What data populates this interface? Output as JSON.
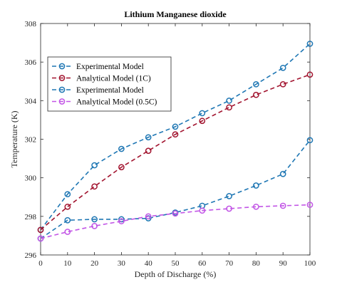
{
  "chart_data": {
    "type": "line",
    "title": "Lithium Manganese dioxide",
    "xlabel": "Depth of Discharge (%)",
    "ylabel": "Temperature (K)",
    "xlim": [
      0,
      100
    ],
    "ylim": [
      296,
      308
    ],
    "xticks": [
      0,
      10,
      20,
      30,
      40,
      50,
      60,
      70,
      80,
      90,
      100
    ],
    "yticks": [
      296,
      298,
      300,
      302,
      304,
      306,
      308
    ],
    "grid": false,
    "legend_position": "upper-left",
    "series": [
      {
        "name": "Experimental Model",
        "color": "#1f77b4",
        "marker": "circle",
        "line_style": "dashed",
        "x": [
          0,
          10,
          20,
          30,
          40,
          50,
          60,
          70,
          80,
          90,
          100
        ],
        "y": [
          297.3,
          299.15,
          300.65,
          301.5,
          302.1,
          302.65,
          303.35,
          304.0,
          304.85,
          305.7,
          306.95
        ]
      },
      {
        "name": "Analytical Model (1C)",
        "color": "#a2142f",
        "marker": "circle",
        "line_style": "dashed",
        "x": [
          0,
          10,
          20,
          30,
          40,
          50,
          60,
          70,
          80,
          90,
          100
        ],
        "y": [
          297.3,
          298.5,
          299.55,
          300.55,
          301.4,
          302.25,
          302.95,
          303.65,
          304.3,
          304.85,
          305.35
        ]
      },
      {
        "name": "Experimental Model",
        "color": "#1f77b4",
        "marker": "circle",
        "line_style": "dashed",
        "x": [
          0,
          10,
          20,
          30,
          40,
          50,
          60,
          70,
          80,
          90,
          100
        ],
        "y": [
          296.85,
          297.8,
          297.85,
          297.85,
          297.9,
          298.2,
          298.55,
          299.05,
          299.6,
          300.2,
          301.95
        ]
      },
      {
        "name": "Analytical Model (0.5C)",
        "color": "#c255e6",
        "marker": "circle",
        "line_style": "dashed",
        "x": [
          0,
          10,
          20,
          30,
          40,
          50,
          60,
          70,
          80,
          90,
          100
        ],
        "y": [
          296.85,
          297.2,
          297.5,
          297.75,
          298.0,
          298.15,
          298.3,
          298.4,
          298.5,
          298.55,
          298.6
        ]
      }
    ]
  }
}
